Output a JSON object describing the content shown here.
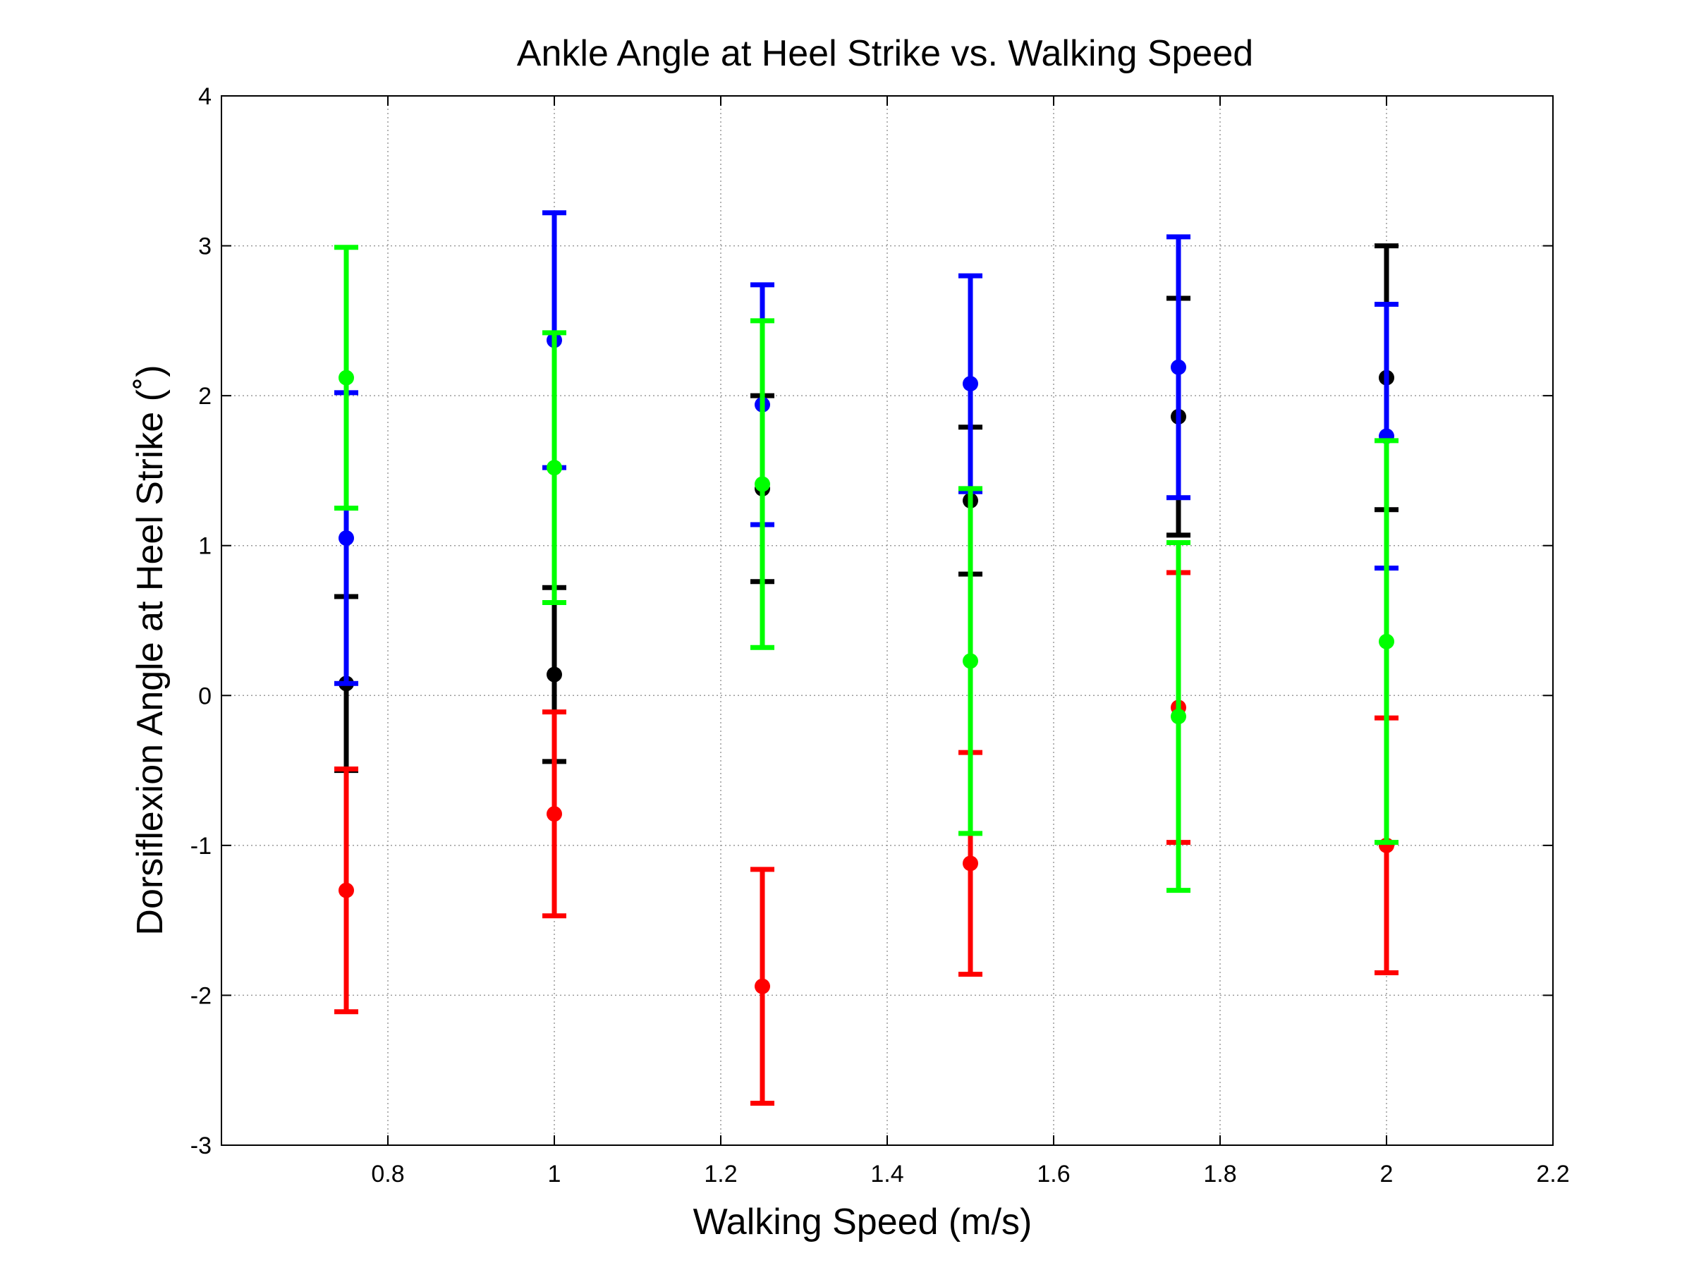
{
  "chart_data": {
    "type": "scatter",
    "title": "Ankle Angle at Heel Strike vs. Walking Speed",
    "xlabel": "Walking Speed (m/s)",
    "ylabel": "Dorsiflexion Angle at Heel Strike (˚)",
    "xlim": [
      0.6,
      2.2
    ],
    "ylim": [
      -3,
      4
    ],
    "xticks": [
      0.8,
      1,
      1.2,
      1.4,
      1.6,
      1.8,
      2,
      2.2
    ],
    "xtick_labels": [
      "0.8",
      "1",
      "1.2",
      "1.4",
      "1.6",
      "1.8",
      "2",
      "2.2"
    ],
    "yticks": [
      -3,
      -2,
      -1,
      0,
      1,
      2,
      3,
      4
    ],
    "ytick_labels": [
      "-3",
      "-2",
      "-1",
      "0",
      "1",
      "2",
      "3",
      "4"
    ],
    "grid": true,
    "error_bars": true,
    "series": [
      {
        "color": "#000000",
        "x": [
          0.75,
          1.0,
          1.25,
          1.5,
          1.75,
          2.0
        ],
        "y": [
          0.08,
          0.14,
          1.38,
          1.3,
          1.86,
          2.12
        ],
        "err": [
          0.58,
          0.58,
          0.62,
          0.49,
          0.79,
          0.88
        ]
      },
      {
        "color": "#ff0000",
        "x": [
          0.75,
          1.0,
          1.25,
          1.5,
          1.75,
          2.0
        ],
        "y": [
          -1.3,
          -0.79,
          -1.94,
          -1.12,
          -0.08,
          -1.0
        ],
        "err": [
          0.81,
          0.68,
          0.78,
          0.74,
          0.9,
          0.85
        ]
      },
      {
        "color": "#0000ff",
        "x": [
          0.75,
          1.0,
          1.25,
          1.5,
          1.75,
          2.0
        ],
        "y": [
          1.05,
          2.37,
          1.94,
          2.08,
          2.19,
          1.73
        ],
        "err": [
          0.97,
          0.85,
          0.8,
          0.72,
          0.87,
          0.88
        ]
      },
      {
        "color": "#00ff00",
        "x": [
          0.75,
          1.0,
          1.25,
          1.5,
          1.75,
          2.0
        ],
        "y": [
          2.12,
          1.52,
          1.41,
          0.23,
          -0.14,
          0.36
        ],
        "err": [
          0.87,
          0.9,
          1.09,
          1.15,
          1.16,
          1.34
        ]
      }
    ]
  }
}
